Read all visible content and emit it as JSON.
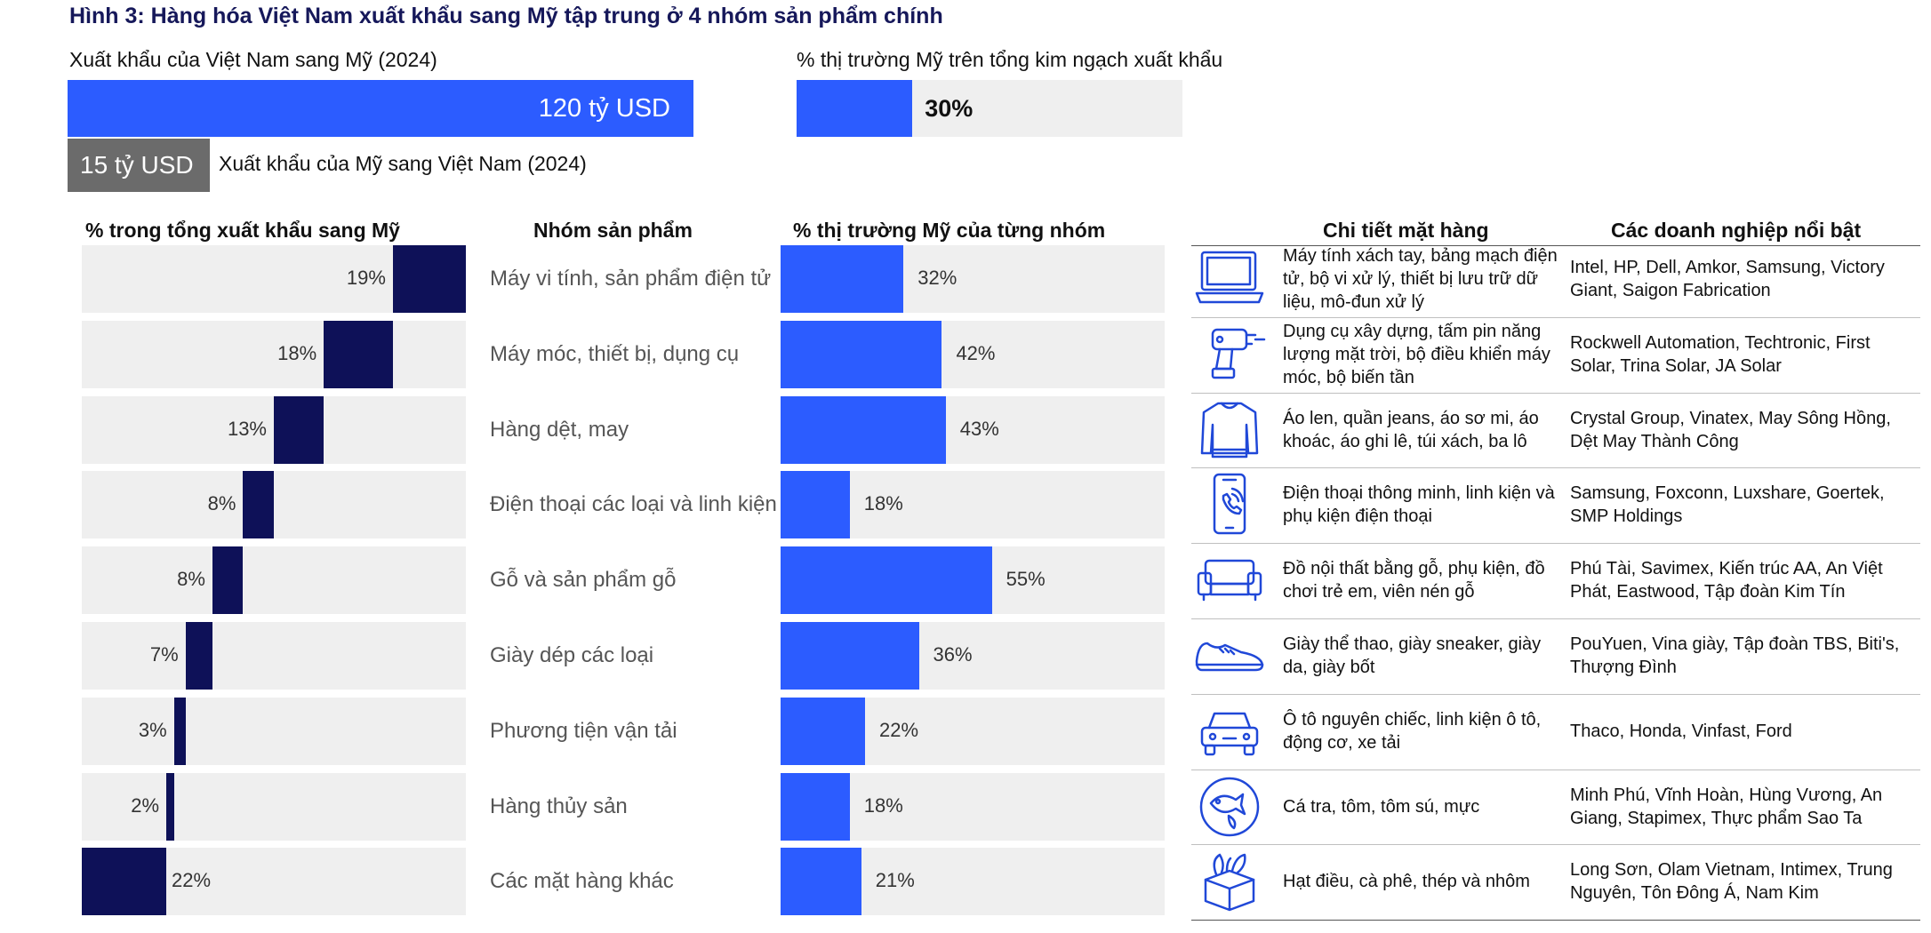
{
  "title": "Hình 3: Hàng hóa Việt Nam xuất khẩu sang Mỹ tập trung ở 4 nhóm sản phẩm chính",
  "summary": {
    "vn_to_us_label": "Xuất khẩu của Việt Nam sang Mỹ (2024)",
    "vn_to_us_value": "120 tỷ USD",
    "us_to_vn_value": "15 tỷ USD",
    "us_to_vn_label": "Xuất khẩu của Mỹ sang Việt Nam (2024)",
    "us_share_label": "% thị trường Mỹ trên tổng kim ngạch xuất khẩu",
    "us_share_value": "30%",
    "vn_to_us_amount": 120,
    "us_to_vn_amount": 15,
    "us_share_fraction": 0.3
  },
  "headers": {
    "share_total": "% trong tổng xuất khẩu sang Mỹ",
    "group": "Nhóm sản phẩm",
    "share_us_market": "% thị trường Mỹ của từng nhóm",
    "details": "Chi tiết mặt hàng",
    "companies": "Các doanh nghiệp nổi bật"
  },
  "colors": {
    "navy": "#0e1158",
    "blue": "#2c5cff",
    "track": "#efefef",
    "icon": "#2048d8"
  },
  "chart_data": {
    "type": "bar",
    "title": "Hình 3: Hàng hóa Việt Nam xuất khẩu sang Mỹ tập trung ở 4 nhóm sản phẩm chính",
    "categories": [
      "Máy vi tính, sản phẩm điện tử",
      "Máy móc, thiết bị, dụng cụ",
      "Hàng dệt, may",
      "Điện thoại các loại và linh kiện",
      "Gỗ và sản phẩm gỗ",
      "Giày dép các loại",
      "Phương tiện vận tải",
      "Hàng thủy sản",
      "Các mặt hàng khác"
    ],
    "series": [
      {
        "name": "% trong tổng xuất khẩu sang Mỹ",
        "values": [
          19,
          18,
          13,
          8,
          8,
          7,
          3,
          2,
          22
        ],
        "labels": [
          "19%",
          "18%",
          "13%",
          "8%",
          "8%",
          "7%",
          "3%",
          "2%",
          "22%"
        ],
        "style": "waterfall"
      },
      {
        "name": "% thị trường Mỹ của từng nhóm",
        "values": [
          32,
          42,
          43,
          18,
          55,
          36,
          22,
          18,
          21
        ],
        "labels": [
          "32%",
          "42%",
          "43%",
          "18%",
          "55%",
          "36%",
          "22%",
          "18%",
          "21%"
        ]
      }
    ],
    "ylim": [
      0,
      100
    ]
  },
  "rows": [
    {
      "icon": "laptop-icon",
      "details": "Máy tính xách tay, bảng mạch điện tử, bộ vi xử lý, thiết bị lưu trữ dữ liệu, mô-đun xử lý",
      "companies": "Intel, HP, Dell, Amkor, Samsung, Victory Giant, Saigon Fabrication"
    },
    {
      "icon": "drill-icon",
      "details": "Dụng cụ xây dựng, tấm pin năng lượng mặt trời, bộ điều khiển máy móc, bộ biến tần",
      "companies": "Rockwell Automation, Techtronic, First Solar, Trina Solar, JA Solar"
    },
    {
      "icon": "sweater-icon",
      "details": "Áo len, quần jeans, áo sơ mi, áo khoác, áo ghi lê, túi xách, ba lô",
      "companies": "Crystal Group, Vinatex, May Sông Hồng, Dệt May Thành Công"
    },
    {
      "icon": "smartphone-icon",
      "details": "Điện thoại thông minh, linh kiện và phụ kiện điện thoại",
      "companies": "Samsung, Foxconn, Luxshare, Goertek, SMP Holdings"
    },
    {
      "icon": "sofa-icon",
      "details": "Đồ nội thất bằng gỗ, phụ kiện, đồ chơi trẻ em, viên nén gỗ",
      "companies": "Phú Tài, Savimex, Kiến trúc AA, An Việt Phát, Eastwood, Tập đoàn Kim Tín"
    },
    {
      "icon": "sneaker-icon",
      "details": "Giày thể thao, giày sneaker, giày da, giày bốt",
      "companies": "PouYuen, Vina giày, Tập đoàn TBS, Biti's, Thượng Đình"
    },
    {
      "icon": "car-icon",
      "details": "Ô tô nguyên chiếc, linh kiện ô tô, động cơ, xe tải",
      "companies": "Thaco, Honda, Vinfast, Ford"
    },
    {
      "icon": "fish-icon",
      "details": "Cá tra, tôm, tôm sú, mực",
      "companies": "Minh Phú, Vĩnh Hoàn, Hùng Vương, An Giang, Stapimex, Thực phẩm Sao Ta"
    },
    {
      "icon": "box-icon",
      "details": "Hạt điều, cà phê, thép và nhôm",
      "companies": "Long Sơn, Olam Vietnam, Intimex, Trung Nguyên, Tôn Đông Á, Nam Kim"
    }
  ]
}
